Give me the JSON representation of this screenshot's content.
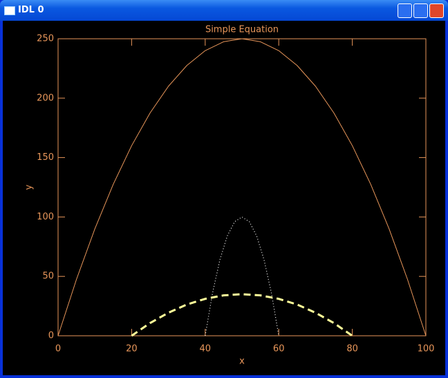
{
  "window": {
    "title": "IDL 0"
  },
  "chart_data": {
    "type": "line",
    "title": "Simple Equation",
    "x_label": "x",
    "y_label": "y",
    "xlim": [
      0,
      100
    ],
    "xticks": [
      0,
      20,
      40,
      60,
      80,
      100
    ],
    "ylim": [
      0,
      250
    ],
    "yticks": [
      0,
      50,
      100,
      150,
      200,
      250
    ],
    "axis_color": "#e8965a",
    "series": [
      {
        "color": "#e8965a",
        "style": "solid",
        "x": [
          0,
          5,
          10,
          15,
          20,
          25,
          30,
          35,
          40,
          45,
          50,
          55,
          60,
          65,
          70,
          75,
          80,
          85,
          90,
          95,
          100
        ],
        "values": [
          0,
          47.5,
          90,
          127.5,
          160,
          187.5,
          210,
          227.5,
          240,
          247.5,
          250,
          247.5,
          240,
          227.5,
          210,
          187.5,
          160,
          127.5,
          90,
          47.5,
          0
        ]
      },
      {
        "color": "#ffffff",
        "style": "dotted",
        "x": [
          40,
          42,
          44,
          46,
          48,
          50,
          52,
          54,
          56,
          58,
          60
        ],
        "values": [
          0,
          36,
          64,
          84,
          96,
          100,
          96,
          84,
          64,
          36,
          0
        ]
      },
      {
        "color": "#ffff99",
        "style": "dashed",
        "x": [
          20,
          25,
          30,
          35,
          40,
          45,
          50,
          55,
          60,
          65,
          70,
          75,
          80
        ],
        "values": [
          0,
          10.7,
          19.4,
          26.3,
          31.1,
          34,
          35,
          34,
          31.1,
          26.3,
          19.4,
          10.7,
          0
        ]
      }
    ]
  }
}
